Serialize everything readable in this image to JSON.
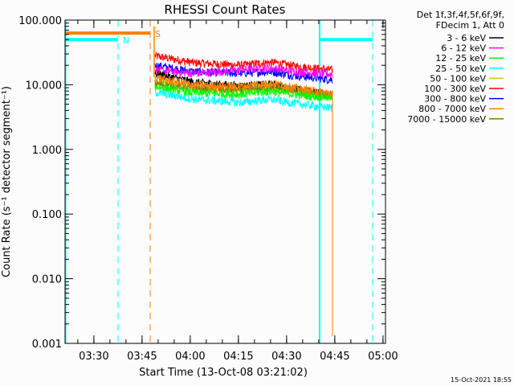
{
  "chart_data": {
    "type": "line",
    "title": "RHESSI Count Rates",
    "xlabel": "Start Time (13-Oct-08 03:21:02)",
    "ylabel": "Count Rate (s⁻¹ detector segment⁻¹)",
    "yscale": "log",
    "ylim": [
      0.001,
      100
    ],
    "xlim_minutes_after_start": [
      0,
      99.75
    ],
    "start_time": "03:21:02",
    "yticks": [
      "100.000",
      "10.000",
      "1.000",
      "0.100",
      "0.010",
      "0.001"
    ],
    "xticks": [
      {
        "label": "03:30",
        "t": 8.97
      },
      {
        "label": "03:45",
        "t": 23.97
      },
      {
        "label": "04:00",
        "t": 38.97
      },
      {
        "label": "04:15",
        "t": 53.97
      },
      {
        "label": "04:30",
        "t": 68.97
      },
      {
        "label": "04:45",
        "t": 83.97
      },
      {
        "label": "05:00",
        "t": 98.97
      }
    ],
    "legend": {
      "placement": "right",
      "header": [
        "Det 1f,3f,4f,5f,6f,9f,",
        "FDecim 1, Att 0"
      ]
    },
    "series_t": [
      28,
      40,
      55,
      65,
      83.25
    ],
    "series": [
      {
        "name": "3 - 6 keV",
        "color": "#000000",
        "values": [
          15,
          11,
          9.5,
          9.5,
          7
        ]
      },
      {
        "name": "6 - 12 keV",
        "color": "#ff00ff",
        "values": [
          17,
          15,
          17,
          17,
          14.5
        ]
      },
      {
        "name": "12 - 25 keV",
        "color": "#00ff00",
        "values": [
          9.4,
          7.5,
          7.1,
          7.5,
          6.3
        ]
      },
      {
        "name": "25 - 50 keV",
        "color": "#00ffff",
        "values": [
          7.7,
          6,
          5.3,
          5.6,
          4.4
        ]
      },
      {
        "name": "50 - 100 keV",
        "color": "#cccc00",
        "values": [
          11,
          9,
          8.4,
          8.8,
          7
        ]
      },
      {
        "name": "100 - 300 keV",
        "color": "#ff0000",
        "values": [
          28,
          22,
          20,
          21,
          17
        ]
      },
      {
        "name": "300 - 800 keV",
        "color": "#0000ff",
        "values": [
          20,
          16,
          15,
          15,
          12
        ]
      },
      {
        "name": "800 - 7000 keV",
        "color": "#ff8000",
        "values": [
          13,
          10,
          9.4,
          10,
          7.3
        ]
      },
      {
        "name": "7000 - 15000 keV",
        "color": "#808000",
        "values": [
          10.5,
          8.8,
          8.2,
          8.6,
          6.8
        ]
      }
    ],
    "annotations": [
      {
        "label": "N",
        "color": "#00ffff",
        "bar_level": 50,
        "t_start": 0,
        "t_end": 16.5
      },
      {
        "label": "S",
        "color": "#ff8000",
        "bar_level": 63,
        "t_start": 0,
        "t_end": 26.5
      }
    ],
    "timestamp": "15-Oct-2021 18:55"
  }
}
